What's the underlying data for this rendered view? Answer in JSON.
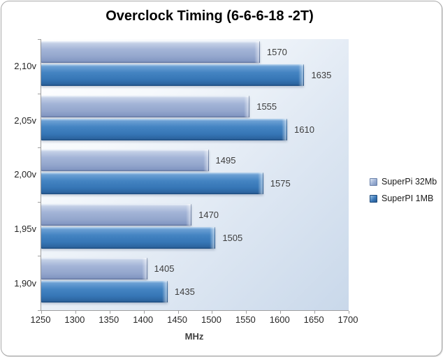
{
  "title": "Overclock Timing (6-6-6-18 -2T)",
  "chart_data": {
    "type": "bar",
    "orientation": "horizontal",
    "title": "Overclock Timing (6-6-6-18 -2T)",
    "categories": [
      "2,10v",
      "2,05v",
      "2,00v",
      "1,95v",
      "1,90v"
    ],
    "series": [
      {
        "name": "SuperPi 32Mb",
        "color": "#9BB0D4",
        "values": [
          1570,
          1555,
          1495,
          1470,
          1405
        ]
      },
      {
        "name": "SuperPI 1MB",
        "color": "#3A78B8",
        "values": [
          1635,
          1610,
          1575,
          1505,
          1435
        ]
      }
    ],
    "xlabel": "MHz",
    "ylabel": "",
    "xlim": [
      1250,
      1700
    ],
    "xticks": [
      1250,
      1300,
      1350,
      1400,
      1450,
      1500,
      1550,
      1600,
      1650,
      1700
    ],
    "grid": false,
    "data_labels": true,
    "legend_position": "right"
  }
}
